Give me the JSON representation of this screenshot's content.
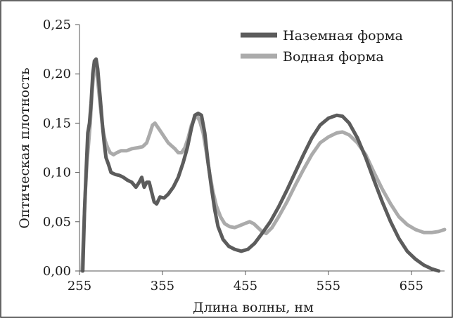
{
  "chart_data": {
    "type": "line",
    "xlabel": "Длина волны, нм",
    "ylabel": "Оптическая плотность",
    "xlim": [
      255,
      695
    ],
    "ylim": [
      0,
      0.25
    ],
    "x_ticks": [
      255,
      355,
      455,
      555,
      655
    ],
    "x_tick_labels": [
      "255",
      "355",
      "455",
      "555",
      "655"
    ],
    "y_ticks": [
      0,
      0.05,
      0.1,
      0.15,
      0.2,
      0.25
    ],
    "y_tick_labels": [
      "0,00",
      "0,05",
      "0,10",
      "0,15",
      "0,20",
      "0,25"
    ],
    "grid": false,
    "legend_position": "top-right",
    "series": [
      {
        "name": "Наземная форма",
        "color": "#5c5c5c",
        "points": [
          [
            259,
            0.0
          ],
          [
            261,
            0.06
          ],
          [
            263,
            0.1
          ],
          [
            265,
            0.14
          ],
          [
            267,
            0.15
          ],
          [
            269,
            0.17
          ],
          [
            271,
            0.2
          ],
          [
            273,
            0.213
          ],
          [
            275,
            0.215
          ],
          [
            277,
            0.205
          ],
          [
            279,
            0.185
          ],
          [
            281,
            0.165
          ],
          [
            283,
            0.145
          ],
          [
            285,
            0.128
          ],
          [
            287,
            0.115
          ],
          [
            290,
            0.108
          ],
          [
            293,
            0.1
          ],
          [
            298,
            0.098
          ],
          [
            303,
            0.097
          ],
          [
            308,
            0.095
          ],
          [
            313,
            0.092
          ],
          [
            318,
            0.09
          ],
          [
            323,
            0.085
          ],
          [
            327,
            0.09
          ],
          [
            330,
            0.095
          ],
          [
            333,
            0.085
          ],
          [
            336,
            0.09
          ],
          [
            339,
            0.09
          ],
          [
            342,
            0.08
          ],
          [
            345,
            0.07
          ],
          [
            348,
            0.068
          ],
          [
            352,
            0.075
          ],
          [
            357,
            0.074
          ],
          [
            362,
            0.078
          ],
          [
            368,
            0.085
          ],
          [
            374,
            0.095
          ],
          [
            380,
            0.11
          ],
          [
            385,
            0.125
          ],
          [
            390,
            0.145
          ],
          [
            394,
            0.158
          ],
          [
            398,
            0.16
          ],
          [
            402,
            0.158
          ],
          [
            406,
            0.14
          ],
          [
            410,
            0.11
          ],
          [
            414,
            0.085
          ],
          [
            418,
            0.062
          ],
          [
            422,
            0.045
          ],
          [
            428,
            0.032
          ],
          [
            435,
            0.025
          ],
          [
            442,
            0.022
          ],
          [
            450,
            0.02
          ],
          [
            458,
            0.022
          ],
          [
            466,
            0.028
          ],
          [
            475,
            0.038
          ],
          [
            485,
            0.05
          ],
          [
            495,
            0.065
          ],
          [
            505,
            0.082
          ],
          [
            515,
            0.1
          ],
          [
            525,
            0.118
          ],
          [
            535,
            0.135
          ],
          [
            545,
            0.148
          ],
          [
            555,
            0.155
          ],
          [
            565,
            0.158
          ],
          [
            572,
            0.157
          ],
          [
            580,
            0.15
          ],
          [
            590,
            0.135
          ],
          [
            600,
            0.115
          ],
          [
            610,
            0.092
          ],
          [
            620,
            0.07
          ],
          [
            630,
            0.05
          ],
          [
            640,
            0.033
          ],
          [
            650,
            0.02
          ],
          [
            660,
            0.012
          ],
          [
            670,
            0.006
          ],
          [
            680,
            0.002
          ],
          [
            688,
            0.0
          ]
        ]
      },
      {
        "name": "Водная форма",
        "color": "#ababab",
        "points": [
          [
            258,
            0.0
          ],
          [
            260,
            0.04
          ],
          [
            262,
            0.08
          ],
          [
            264,
            0.11
          ],
          [
            266,
            0.13
          ],
          [
            268,
            0.15
          ],
          [
            270,
            0.18
          ],
          [
            272,
            0.2
          ],
          [
            274,
            0.207
          ],
          [
            276,
            0.2
          ],
          [
            278,
            0.185
          ],
          [
            280,
            0.168
          ],
          [
            282,
            0.152
          ],
          [
            284,
            0.14
          ],
          [
            286,
            0.132
          ],
          [
            289,
            0.125
          ],
          [
            292,
            0.12
          ],
          [
            296,
            0.118
          ],
          [
            300,
            0.12
          ],
          [
            305,
            0.122
          ],
          [
            312,
            0.122
          ],
          [
            318,
            0.124
          ],
          [
            325,
            0.125
          ],
          [
            331,
            0.126
          ],
          [
            336,
            0.13
          ],
          [
            340,
            0.14
          ],
          [
            343,
            0.148
          ],
          [
            346,
            0.15
          ],
          [
            350,
            0.145
          ],
          [
            354,
            0.14
          ],
          [
            358,
            0.135
          ],
          [
            362,
            0.13
          ],
          [
            366,
            0.127
          ],
          [
            370,
            0.124
          ],
          [
            374,
            0.12
          ],
          [
            378,
            0.12
          ],
          [
            382,
            0.125
          ],
          [
            386,
            0.135
          ],
          [
            390,
            0.148
          ],
          [
            394,
            0.155
          ],
          [
            397,
            0.157
          ],
          [
            400,
            0.152
          ],
          [
            404,
            0.14
          ],
          [
            408,
            0.12
          ],
          [
            412,
            0.098
          ],
          [
            416,
            0.08
          ],
          [
            420,
            0.066
          ],
          [
            425,
            0.055
          ],
          [
            430,
            0.048
          ],
          [
            436,
            0.045
          ],
          [
            442,
            0.044
          ],
          [
            448,
            0.046
          ],
          [
            454,
            0.048
          ],
          [
            460,
            0.05
          ],
          [
            465,
            0.048
          ],
          [
            470,
            0.044
          ],
          [
            475,
            0.04
          ],
          [
            480,
            0.038
          ],
          [
            487,
            0.044
          ],
          [
            495,
            0.055
          ],
          [
            505,
            0.07
          ],
          [
            515,
            0.087
          ],
          [
            525,
            0.103
          ],
          [
            535,
            0.118
          ],
          [
            545,
            0.13
          ],
          [
            555,
            0.136
          ],
          [
            565,
            0.14
          ],
          [
            572,
            0.141
          ],
          [
            580,
            0.138
          ],
          [
            590,
            0.13
          ],
          [
            600,
            0.118
          ],
          [
            610,
            0.1
          ],
          [
            620,
            0.083
          ],
          [
            630,
            0.068
          ],
          [
            640,
            0.055
          ],
          [
            650,
            0.047
          ],
          [
            660,
            0.042
          ],
          [
            670,
            0.039
          ],
          [
            680,
            0.039
          ],
          [
            688,
            0.04
          ],
          [
            695,
            0.042
          ]
        ]
      }
    ]
  }
}
